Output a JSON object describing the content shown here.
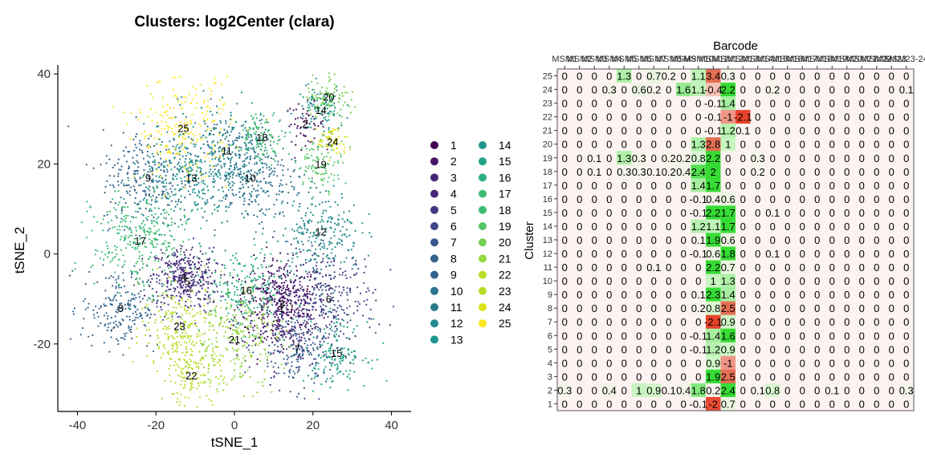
{
  "chart_data": [
    {
      "type": "scatter",
      "title": "Clusters: log2Center (clara)",
      "xlabel": "tSNE_1",
      "ylabel": "tSNE_2",
      "xlim": [
        -45,
        45
      ],
      "ylim": [
        -35,
        42
      ],
      "x_ticks": [
        "-40",
        "-20",
        "0",
        "20",
        "40"
      ],
      "y_ticks": [
        "40",
        "20",
        "0",
        "-20"
      ],
      "legend": {
        "placement": "right",
        "entries": [
          "1",
          "2",
          "3",
          "4",
          "5",
          "6",
          "7",
          "8",
          "9",
          "10",
          "11",
          "12",
          "13",
          "14",
          "15",
          "16",
          "17",
          "18",
          "19",
          "20",
          "21",
          "22",
          "23",
          "24",
          "25"
        ]
      },
      "cluster_label_positions": [
        {
          "label": "1",
          "x": 12,
          "y": -12
        },
        {
          "label": "2",
          "x": 18,
          "y": 29
        },
        {
          "label": "3",
          "x": 12,
          "y": -11
        },
        {
          "label": "4",
          "x": -13,
          "y": -5
        },
        {
          "label": "5",
          "x": -12,
          "y": -6
        },
        {
          "label": "6",
          "x": 24,
          "y": -10
        },
        {
          "label": "7",
          "x": 16,
          "y": -21
        },
        {
          "label": "8",
          "x": -29,
          "y": -12
        },
        {
          "label": "9",
          "x": -22,
          "y": 17
        },
        {
          "label": "10",
          "x": 4,
          "y": 17
        },
        {
          "label": "11",
          "x": -2,
          "y": 23
        },
        {
          "label": "12",
          "x": 22,
          "y": 5
        },
        {
          "label": "13",
          "x": -11,
          "y": 17
        },
        {
          "label": "14",
          "x": 22,
          "y": 32
        },
        {
          "label": "15",
          "x": 26,
          "y": -22
        },
        {
          "label": "16",
          "x": 3,
          "y": -8
        },
        {
          "label": "17",
          "x": -24,
          "y": 3
        },
        {
          "label": "18",
          "x": 7,
          "y": 26
        },
        {
          "label": "19",
          "x": 22,
          "y": 20
        },
        {
          "label": "20",
          "x": 24,
          "y": 35
        },
        {
          "label": "21",
          "x": 0,
          "y": -19
        },
        {
          "label": "22",
          "x": -11,
          "y": -27
        },
        {
          "label": "23",
          "x": -14,
          "y": -16
        },
        {
          "label": "24",
          "x": 25,
          "y": 25
        },
        {
          "label": "25",
          "x": -13,
          "y": 28
        }
      ]
    },
    {
      "type": "heatmap",
      "xlabel": "Barcode",
      "ylabel": "Cluster",
      "columns": [
        "MSM1",
        "MSM2",
        "MSM3",
        "MSM4",
        "MSM5",
        "MSM6",
        "MSM7",
        "MSM8",
        "MSM9",
        "MSM10",
        "MSM11",
        "MSM12",
        "MSM13",
        "MSM14",
        "MSM15",
        "MSM16",
        "MSM17",
        "MSM18",
        "MSM19",
        "MSM20",
        "MSM21",
        "MSM22",
        "MSM23",
        "MSM23-24"
      ],
      "column_tick_labels": [
        "MSM",
        "MSM",
        "2",
        "MSM",
        "3",
        "MSM",
        "5",
        "MSM",
        "6",
        "MSM",
        "7",
        "MSM",
        "8",
        "MSM",
        "9",
        "MSM",
        "1",
        "MSM",
        "1",
        "MSM",
        "1",
        "2",
        "MSM",
        "1",
        "3",
        "MSM",
        "1",
        "4",
        "MSM",
        "1",
        "5",
        "MSM",
        "1",
        "6",
        "MSM",
        "1",
        "7",
        "MSM",
        "1",
        "8",
        "MSM",
        "1",
        "9",
        "MSM",
        "2",
        "0",
        "MSM",
        "2",
        "1",
        "MSM",
        "2",
        "2",
        "MSM",
        "2",
        "3",
        "-24"
      ],
      "rows": [
        "25",
        "24",
        "23",
        "22",
        "21",
        "20",
        "19",
        "18",
        "17",
        "16",
        "15",
        "14",
        "13",
        "12",
        "11",
        "10",
        "9",
        "8",
        "7",
        "6",
        "5",
        "4",
        "3",
        "2",
        "1"
      ],
      "cells": [
        [
          "0",
          "0",
          "0",
          "0",
          "1.3",
          "0",
          "0.7",
          "0.2",
          "0",
          "1.1",
          "3.4",
          "0.3",
          "0",
          "0",
          "0",
          "0",
          "0",
          "0",
          "0",
          "0",
          "0",
          "0",
          "0",
          "0"
        ],
        [
          "0",
          "0",
          "0",
          "0.3",
          "0",
          "0.6",
          "0.2",
          "0",
          "1.6",
          "1.1",
          "-0.4",
          "2.2",
          "0",
          "0",
          "0.2",
          "0",
          "0",
          "0",
          "0",
          "0",
          "0",
          "0",
          "0",
          "0.1"
        ],
        [
          "0",
          "0",
          "0",
          "0",
          "0",
          "0",
          "0",
          "0",
          "0",
          "0",
          "-0.1",
          "1.4",
          "0",
          "0",
          "0",
          "0",
          "0",
          "0",
          "0",
          "0",
          "0",
          "0",
          "0",
          "0"
        ],
        [
          "0",
          "0",
          "0",
          "0",
          "0",
          "0",
          "0",
          "0",
          "0",
          "0",
          "-0.1",
          "-1",
          "-2.1",
          "0",
          "0",
          "0",
          "0",
          "0",
          "0",
          "0",
          "0",
          "0",
          "0",
          "0"
        ],
        [
          "0",
          "0",
          "0",
          "0",
          "0",
          "0",
          "0",
          "0",
          "0",
          "0",
          "-0.1",
          "1.2",
          "0.1",
          "0",
          "0",
          "0",
          "0",
          "0",
          "0",
          "0",
          "0",
          "0",
          "0",
          "0"
        ],
        [
          "0",
          "0",
          "0",
          "0",
          "0",
          "0",
          "0",
          "0",
          "0",
          "1.3",
          "2.8",
          "1",
          "0",
          "0",
          "0",
          "0",
          "0",
          "0",
          "0",
          "0",
          "0",
          "0",
          "0",
          "0"
        ],
        [
          "0",
          "0",
          "0.1",
          "0",
          "1.3",
          "0.3",
          "0",
          "0.2",
          "0.2",
          "0.8",
          "2.2",
          "0",
          "0",
          "0.3",
          "0",
          "0",
          "0",
          "0",
          "0",
          "0",
          "0",
          "0",
          "0",
          "0"
        ],
        [
          "0",
          "0",
          "0.1",
          "0",
          "0.3",
          "0.3",
          "0.1",
          "0.2",
          "0.4",
          "2.4",
          "2",
          "0",
          "0",
          "0.2",
          "0",
          "0",
          "0",
          "0",
          "0",
          "0",
          "0",
          "0",
          "0",
          "0"
        ],
        [
          "0",
          "0",
          "0",
          "0",
          "0",
          "0",
          "0",
          "0",
          "0",
          "1.4",
          "1.7",
          "0",
          "0",
          "0",
          "0",
          "0",
          "0",
          "0",
          "0",
          "0",
          "0",
          "0",
          "0",
          "0"
        ],
        [
          "0",
          "0",
          "0",
          "0",
          "0",
          "0",
          "0",
          "0",
          "0",
          "-0.1",
          "0.4",
          "0.6",
          "0",
          "0",
          "0",
          "0",
          "0",
          "0",
          "0",
          "0",
          "0",
          "0",
          "0",
          "0"
        ],
        [
          "0",
          "0",
          "0",
          "0",
          "0",
          "0",
          "0",
          "0",
          "0",
          "-0.1",
          "2.2",
          "1.7",
          "0",
          "0",
          "0.1",
          "0",
          "0",
          "0",
          "0",
          "0",
          "0",
          "0",
          "0",
          "0"
        ],
        [
          "0",
          "0",
          "0",
          "0",
          "0",
          "0",
          "0",
          "0",
          "0",
          "1.2",
          "1.1",
          "1.7",
          "0",
          "0",
          "0",
          "0",
          "0",
          "0",
          "0",
          "0",
          "0",
          "0",
          "0",
          "0"
        ],
        [
          "0",
          "0",
          "0",
          "0",
          "0",
          "0",
          "0",
          "0",
          "0",
          "0.1",
          "1.9",
          "0.6",
          "0",
          "0",
          "0",
          "0",
          "0",
          "0",
          "0",
          "0",
          "0",
          "0",
          "0",
          "0"
        ],
        [
          "0",
          "0",
          "0",
          "0",
          "0",
          "0",
          "0",
          "0",
          "0",
          "-0.1",
          "0.6",
          "1.8",
          "0",
          "0",
          "0.1",
          "0",
          "0",
          "0",
          "0",
          "0",
          "0",
          "0",
          "0",
          "0"
        ],
        [
          "0",
          "0",
          "0",
          "0",
          "0",
          "0",
          "0.1",
          "0",
          "0",
          "0",
          "2.2",
          "0.7",
          "0",
          "0",
          "0",
          "0",
          "0",
          "0",
          "0",
          "0",
          "0",
          "0",
          "0",
          "0"
        ],
        [
          "0",
          "0",
          "0",
          "0",
          "0",
          "0",
          "0",
          "0",
          "0",
          "0",
          "1",
          "1.3",
          "0",
          "0",
          "0",
          "0",
          "0",
          "0",
          "0",
          "0",
          "0",
          "0",
          "0",
          "0"
        ],
        [
          "0",
          "0",
          "0",
          "0",
          "0",
          "0",
          "0",
          "0",
          "0",
          "0.1",
          "2.3",
          "1.4",
          "0",
          "0",
          "0",
          "0",
          "0",
          "0",
          "0",
          "0",
          "0",
          "0",
          "0",
          "0"
        ],
        [
          "0",
          "0",
          "0",
          "0",
          "0",
          "0",
          "0",
          "0",
          "0",
          "0.2",
          "0.8",
          "2.5",
          "0",
          "0",
          "0",
          "0",
          "0",
          "0",
          "0",
          "0",
          "0",
          "0",
          "0",
          "0"
        ],
        [
          "0",
          "0",
          "0",
          "0",
          "0",
          "0",
          "0",
          "0",
          "0",
          "0",
          "-2.1",
          "0.9",
          "0",
          "0",
          "0",
          "0",
          "0",
          "0",
          "0",
          "0",
          "0",
          "0",
          "0",
          "0"
        ],
        [
          "0",
          "0",
          "0",
          "0",
          "0",
          "0",
          "0",
          "0",
          "0",
          "-0.1",
          "1.4",
          "1.6",
          "0",
          "0",
          "0",
          "0",
          "0",
          "0",
          "0",
          "0",
          "0",
          "0",
          "0",
          "0"
        ],
        [
          "0",
          "0",
          "0",
          "0",
          "0",
          "0",
          "0",
          "0",
          "0",
          "-0.1",
          "1.2",
          "0.9",
          "0",
          "0",
          "0",
          "0",
          "0",
          "0",
          "0",
          "0",
          "0",
          "0",
          "0",
          "0"
        ],
        [
          "0",
          "0",
          "0",
          "0",
          "0",
          "0",
          "0",
          "0",
          "0",
          "0",
          "0.9",
          "-1",
          "0",
          "0",
          "0",
          "0",
          "0",
          "0",
          "0",
          "0",
          "0",
          "0",
          "0",
          "0"
        ],
        [
          "0",
          "0",
          "0",
          "0",
          "0",
          "0",
          "0",
          "0",
          "0",
          "0",
          "1.9",
          "2.5",
          "0",
          "0",
          "0",
          "0",
          "0",
          "0",
          "0",
          "0",
          "0",
          "0",
          "0",
          "0"
        ],
        [
          "0.3",
          "0",
          "0",
          "0.4",
          "0",
          "1",
          "0.9",
          "0.1",
          "0.4",
          "1.8",
          "0.2",
          "2.4",
          "0",
          "0.1",
          "0.8",
          "0",
          "0",
          "0",
          "0.1",
          "0",
          "0",
          "0",
          "0",
          "0.3"
        ],
        [
          "0",
          "0",
          "0",
          "0",
          "0",
          "0",
          "0",
          "0",
          "0",
          "-0.1",
          "-2",
          "0.7",
          "0",
          "0",
          "0",
          "0",
          "0",
          "0",
          "0",
          "0",
          "0",
          "0",
          "0",
          "0"
        ]
      ],
      "colors": {
        "positive": "#00d200",
        "negative": "#e8432a",
        "neutral": "#fdf3f1"
      }
    }
  ],
  "palette": [
    "#440154",
    "#481467",
    "#482576",
    "#453781",
    "#3f4788",
    "#39558c",
    "#32648e",
    "#2d718e",
    "#287d8e",
    "#238a8d",
    "#1f968b",
    "#20a386",
    "#29af7f",
    "#3dbc74",
    "#56c667",
    "#75d054",
    "#95d840",
    "#b8de29",
    "#dde318",
    "#fde725"
  ]
}
